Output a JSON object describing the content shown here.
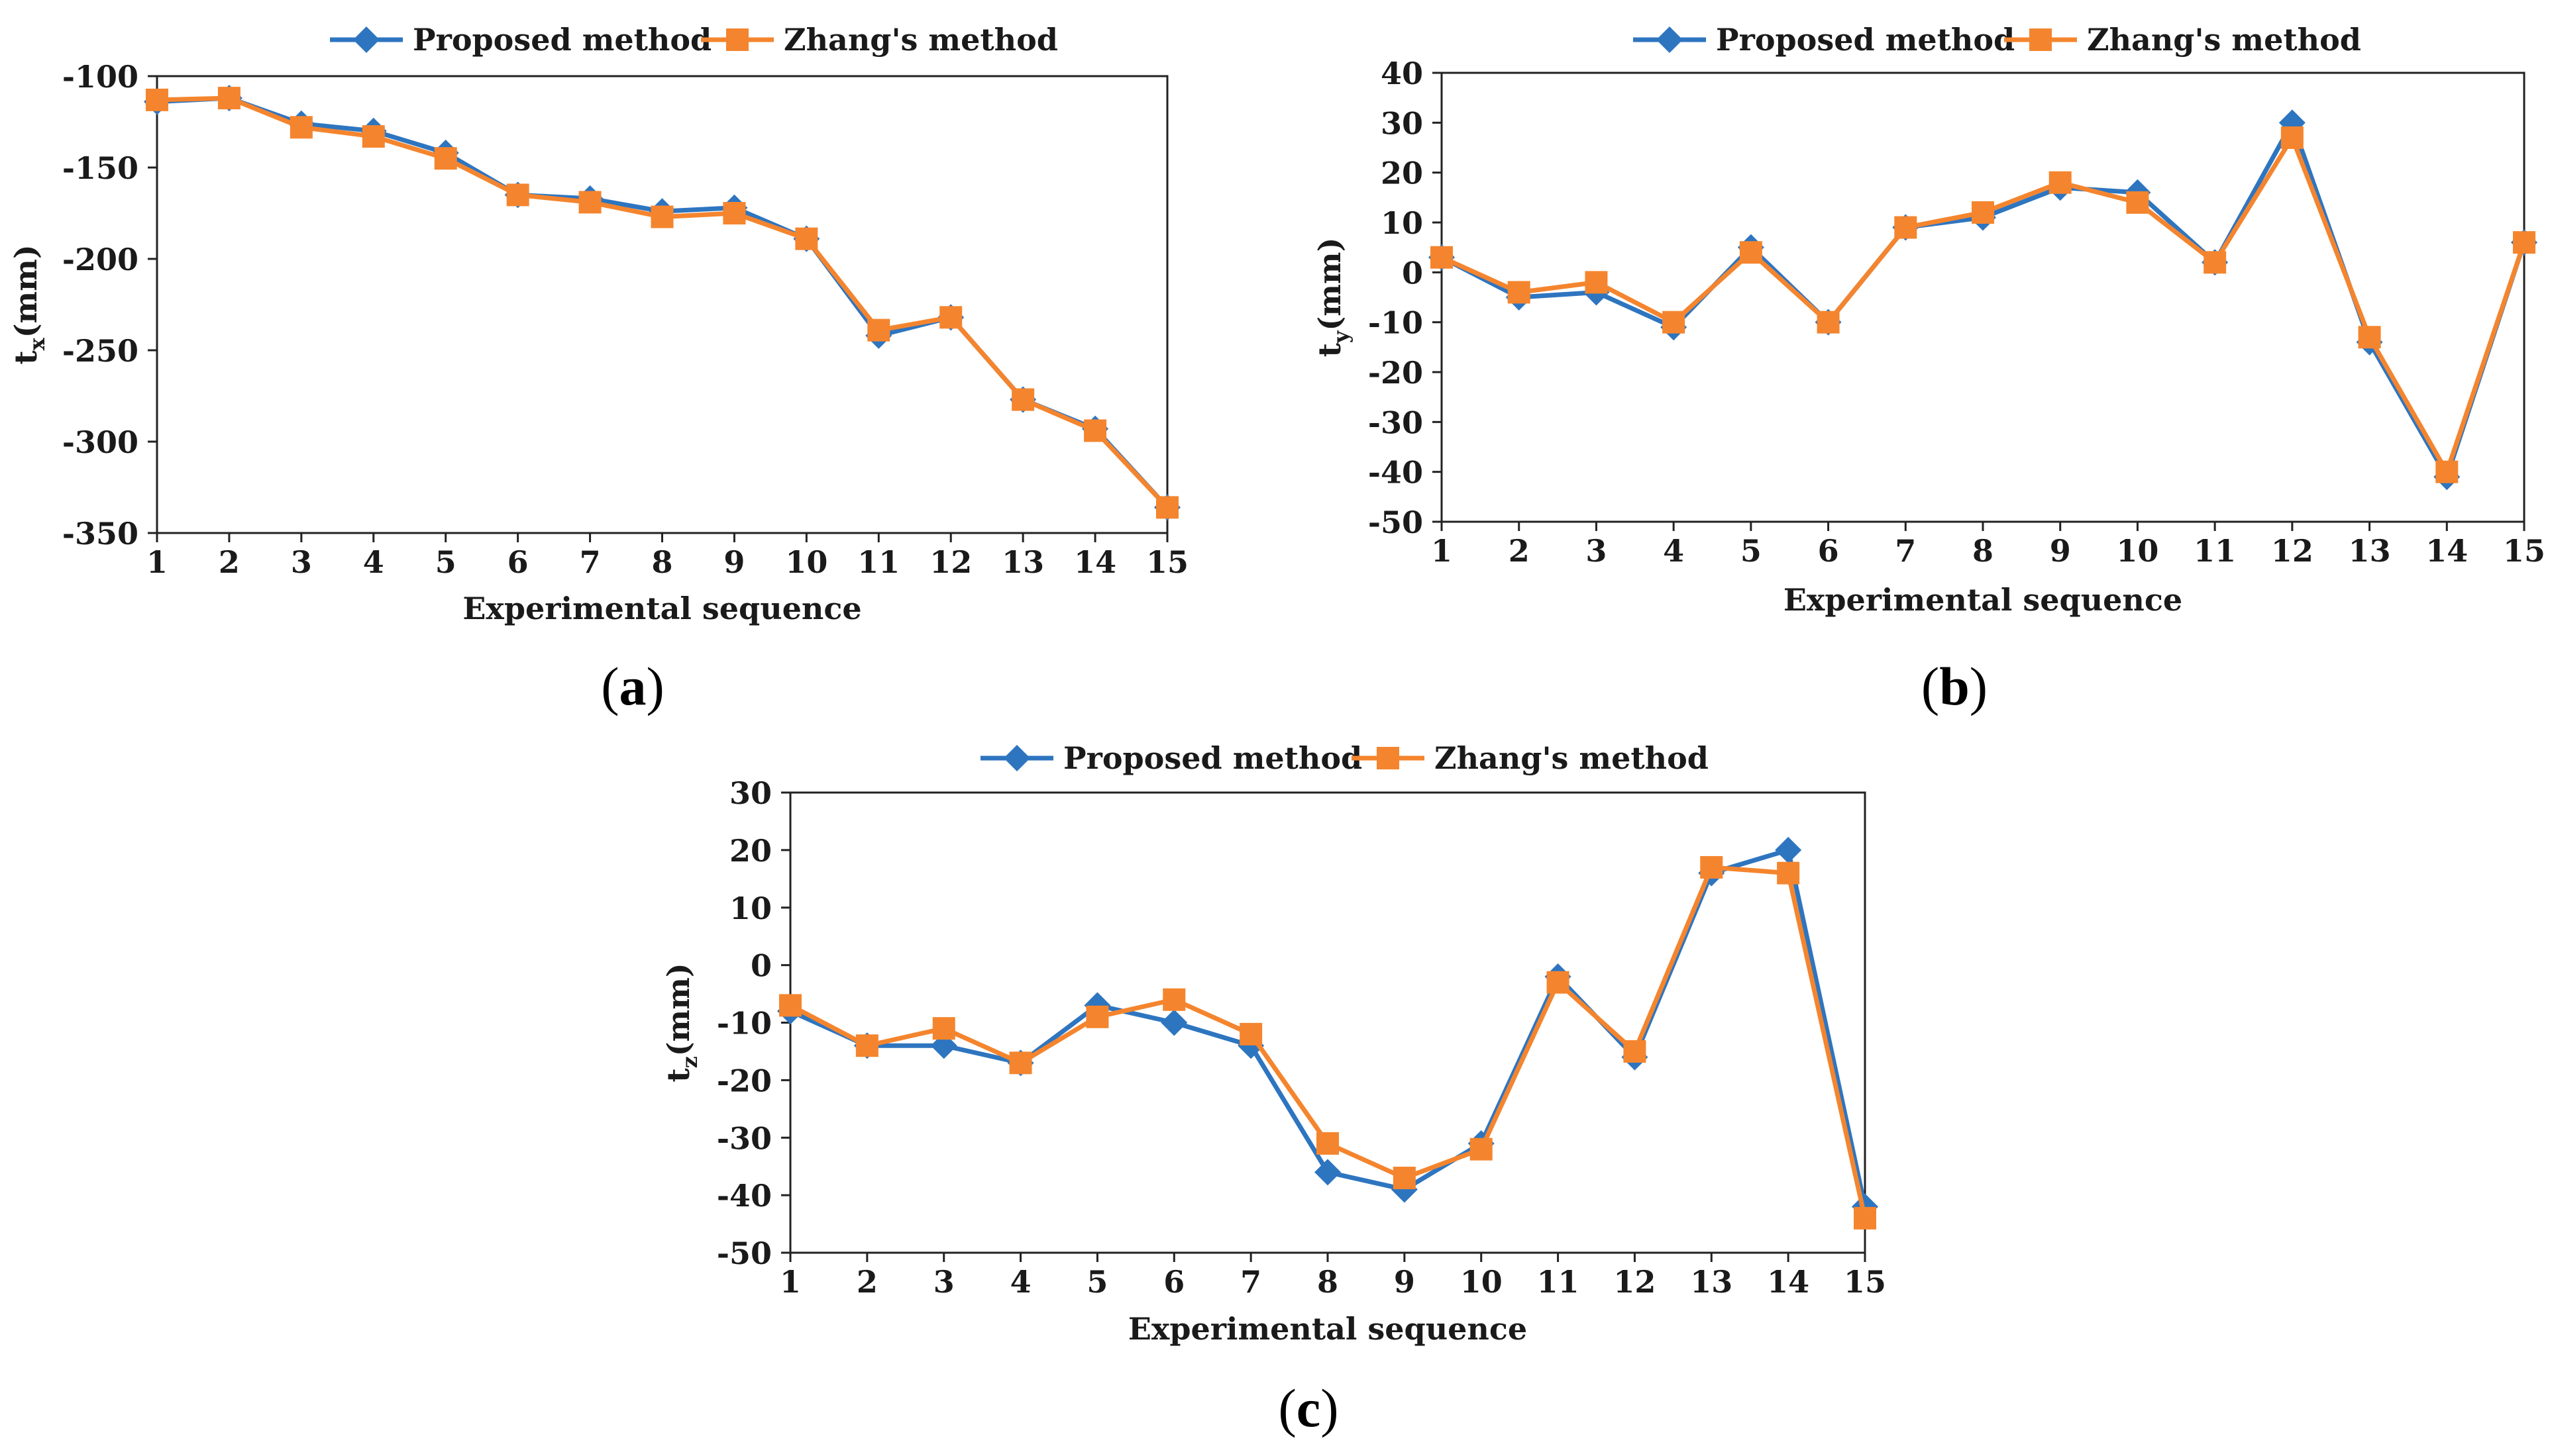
{
  "colors": {
    "proposed": "#2e75c0",
    "zhang": "#f4852e"
  },
  "chart_data": [
    {
      "id": "a",
      "type": "line",
      "panel_label": "a",
      "xlabel": "Experimental sequence",
      "ylabel_main": "t",
      "ylabel_sub": "x",
      "ylabel_unit": "(mm)",
      "x": [
        1,
        2,
        3,
        4,
        5,
        6,
        7,
        8,
        9,
        10,
        11,
        12,
        13,
        14,
        15
      ],
      "ylim": [
        -350,
        -100
      ],
      "yticks": [
        -350,
        -300,
        -250,
        -200,
        -150,
        -100
      ],
      "legend_position": "top",
      "series": [
        {
          "name": "Proposed method",
          "marker": "diamond",
          "values": [
            -114,
            -112,
            -126,
            -130,
            -142,
            -165,
            -167,
            -174,
            -172,
            -189,
            -242,
            -232,
            -277,
            -293,
            -336
          ]
        },
        {
          "name": "Zhang's method",
          "marker": "square",
          "values": [
            -113,
            -112,
            -128,
            -133,
            -145,
            -165,
            -169,
            -177,
            -175,
            -189,
            -239,
            -232,
            -277,
            -294,
            -336
          ]
        }
      ]
    },
    {
      "id": "b",
      "type": "line",
      "panel_label": "b",
      "xlabel": "Experimental sequence",
      "ylabel_main": "t",
      "ylabel_sub": "y",
      "ylabel_unit": "(mm)",
      "x": [
        1,
        2,
        3,
        4,
        5,
        6,
        7,
        8,
        9,
        10,
        11,
        12,
        13,
        14,
        15
      ],
      "ylim": [
        -50,
        40
      ],
      "yticks": [
        -50,
        -40,
        -30,
        -20,
        -10,
        0,
        10,
        20,
        30,
        40
      ],
      "legend_position": "top",
      "series": [
        {
          "name": "Proposed method",
          "marker": "diamond",
          "values": [
            3,
            -5,
            -4,
            -11,
            5,
            -10,
            9,
            11,
            17,
            16,
            2,
            30,
            -14,
            -41,
            6
          ]
        },
        {
          "name": "Zhang's method",
          "marker": "square",
          "values": [
            3,
            -4,
            -2,
            -10,
            4,
            -10,
            9,
            12,
            18,
            14,
            2,
            27,
            -13,
            -40,
            6
          ]
        }
      ]
    },
    {
      "id": "c",
      "type": "line",
      "panel_label": "c",
      "xlabel": "Experimental sequence",
      "ylabel_main": "t",
      "ylabel_sub": "z",
      "ylabel_unit": "(mm)",
      "x": [
        1,
        2,
        3,
        4,
        5,
        6,
        7,
        8,
        9,
        10,
        11,
        12,
        13,
        14,
        15
      ],
      "ylim": [
        -50,
        30
      ],
      "yticks": [
        -50,
        -40,
        -30,
        -20,
        -10,
        0,
        10,
        20,
        30
      ],
      "legend_position": "top",
      "series": [
        {
          "name": "Proposed method",
          "marker": "diamond",
          "values": [
            -8,
            -14,
            -14,
            -17,
            -7,
            -10,
            -14,
            -36,
            -39,
            -31,
            -2,
            -16,
            16,
            20,
            -42
          ]
        },
        {
          "name": "Zhang's method",
          "marker": "square",
          "values": [
            -7,
            -14,
            -11,
            -17,
            -9,
            -6,
            -12,
            -31,
            -37,
            -32,
            -3,
            -15,
            17,
            16,
            -44
          ]
        }
      ]
    }
  ]
}
